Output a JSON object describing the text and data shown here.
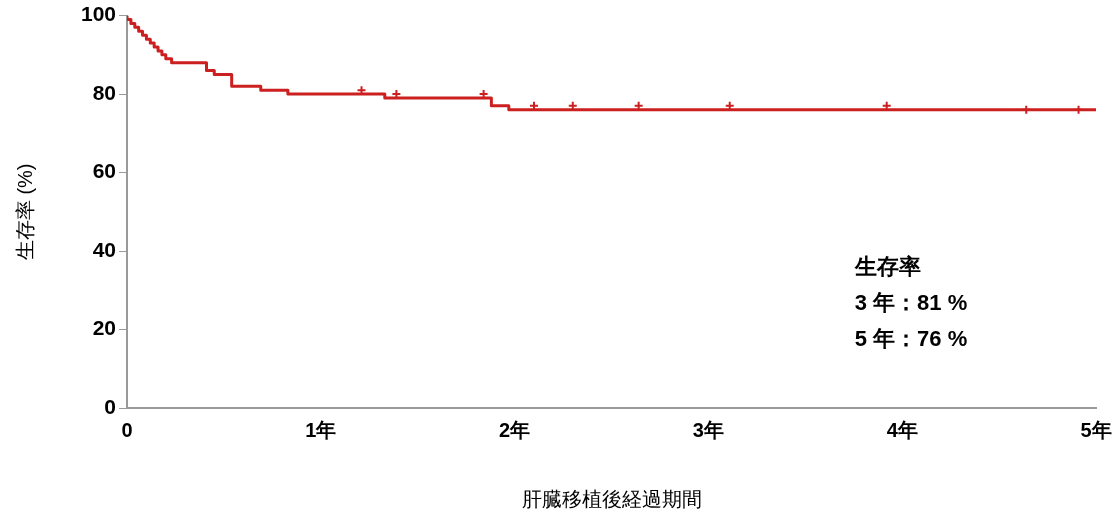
{
  "chart_data": {
    "type": "step",
    "xlabel": "肝臓移植後経過期間",
    "ylabel": "生存率 (%)",
    "xlim": [
      0,
      5
    ],
    "xticks": [
      0,
      {
        "value": 1,
        "label": "1年"
      },
      {
        "value": 2,
        "label": "2年"
      },
      {
        "value": 3,
        "label": "3年"
      },
      {
        "value": 4,
        "label": "4年"
      },
      {
        "value": 5,
        "label": "5年"
      }
    ],
    "ylim": [
      0,
      100
    ],
    "yticks": [
      0,
      20,
      40,
      60,
      80,
      100
    ],
    "grid": false,
    "legend": false,
    "series": [
      {
        "color": "#cc1f1f",
        "marker": "none",
        "x": [
          0,
          0.02,
          0.04,
          0.06,
          0.08,
          0.1,
          0.12,
          0.14,
          0.16,
          0.18,
          0.2,
          0.23,
          0.41,
          0.45,
          0.54,
          0.69,
          0.83,
          1.33,
          1.88,
          1.97,
          4.23,
          5
        ],
        "values": [
          100,
          99,
          98,
          97,
          96,
          95,
          94,
          93,
          92,
          91,
          90,
          89,
          88,
          86,
          85,
          82,
          81,
          80,
          79,
          77,
          76,
          76
        ]
      },
      {
        "type": "scatter",
        "color": "#cc1f1f",
        "marker": "cross",
        "x": [
          1.21,
          1.39,
          1.84,
          2.1,
          2.3,
          2.64,
          3.11,
          3.92,
          4.64,
          4.91
        ],
        "values": [
          81,
          80,
          80,
          77,
          77,
          77,
          77,
          77,
          76,
          76
        ]
      }
    ],
    "annotations": [
      "生存率",
      "3 年：81 %",
      "5 年：76 %"
    ]
  }
}
